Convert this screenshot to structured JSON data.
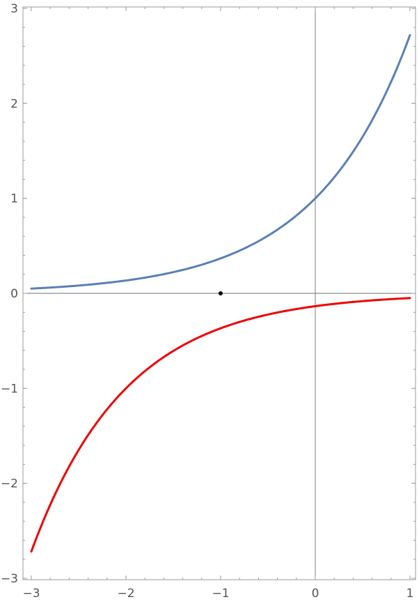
{
  "chart_data": {
    "type": "line",
    "title": "",
    "xlabel": "",
    "ylabel": "",
    "xlim": [
      -3,
      1
    ],
    "ylim": [
      -3,
      3
    ],
    "grid": false,
    "x_ticks": [
      "−3",
      "−2",
      "−1",
      "0",
      "1"
    ],
    "y_ticks": [
      "−3",
      "−2",
      "−1",
      "0",
      "1",
      "2",
      "3"
    ],
    "x_tick_values": [
      -3,
      -2,
      -1,
      0,
      1
    ],
    "y_tick_values": [
      -3,
      -2,
      -1,
      0,
      1,
      2,
      3
    ],
    "series": [
      {
        "color": "#5a7fb5",
        "x": [
          -3,
          -2.5,
          -2,
          -1.5,
          -1,
          -0.5,
          0,
          0.25,
          0.5,
          0.75,
          1
        ],
        "y": [
          0.0498,
          0.0821,
          0.1353,
          0.2231,
          0.3679,
          0.6065,
          1.0,
          1.284,
          1.6487,
          2.117,
          2.7183
        ]
      },
      {
        "color": "#ee0000",
        "x": [
          -3,
          -2.75,
          -2.5,
          -2.25,
          -2,
          -1.5,
          -1,
          -0.5,
          0,
          0.5,
          1
        ],
        "y": [
          -2.7183,
          -2.117,
          -1.6487,
          -1.284,
          -1.0,
          -0.6065,
          -0.3679,
          -0.2231,
          -0.1353,
          -0.0821,
          -0.0498
        ]
      }
    ],
    "points": [
      {
        "x": -1,
        "y": 0,
        "color": "#000000"
      }
    ]
  }
}
